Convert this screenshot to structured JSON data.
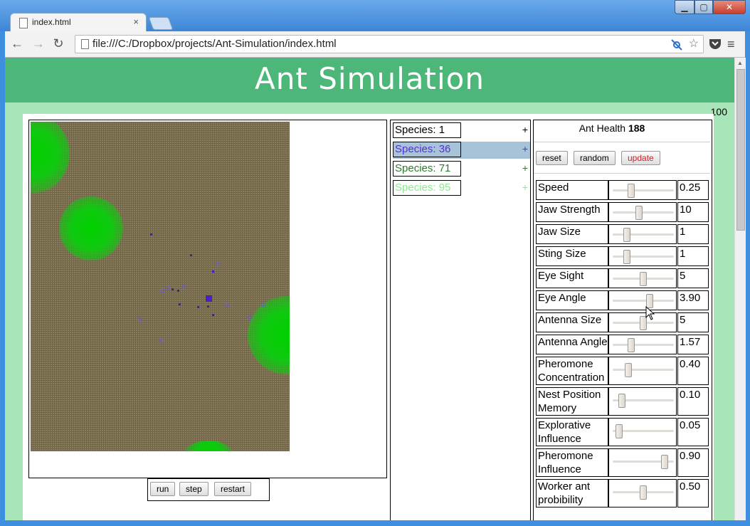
{
  "browser": {
    "tab_title": "index.html",
    "tab_close": "×",
    "url": "file:///C:/Dropbox/projects/Ant-Simulation/index.html",
    "back_icon": "←",
    "forward_icon": "→",
    "reload_icon": "↻",
    "min_icon": "▁",
    "max_icon": "▢",
    "close_icon": "✕",
    "star_icon": "☆",
    "menu_icon": "≡"
  },
  "page": {
    "title": "Ant Simulation",
    "counter": "100"
  },
  "sim_controls": {
    "run": "run",
    "step": "step",
    "restart": "restart"
  },
  "species": [
    {
      "label": "Species: 1",
      "color": "#000000",
      "plus": "+",
      "selected": false
    },
    {
      "label": "Species: 36",
      "color": "#5a2fd8",
      "plus": "+",
      "selected": true
    },
    {
      "label": "Species: 71",
      "color": "#2f7a2f",
      "plus": "+",
      "selected": false
    },
    {
      "label": "Species: 95",
      "color": "#8ee88e",
      "plus": "+",
      "selected": false
    }
  ],
  "params_panel": {
    "health_label": "Ant Health",
    "health_value": "188",
    "reset": "reset",
    "random": "random",
    "update": "update",
    "update_color": "#d0202a"
  },
  "params": [
    {
      "label": "Speed",
      "value": "0.25",
      "level": 0.28
    },
    {
      "label": "Jaw Strength",
      "value": "10",
      "level": 0.42
    },
    {
      "label": "Jaw Size",
      "value": "1",
      "level": 0.2
    },
    {
      "label": "Sting Size",
      "value": "1",
      "level": 0.2
    },
    {
      "label": "Eye Sight",
      "value": "5",
      "level": 0.5
    },
    {
      "label": "Eye Angle",
      "value": "3.90",
      "level": 0.62
    },
    {
      "label": "Antenna Size",
      "value": "5",
      "level": 0.5
    },
    {
      "label": "Antenna Angle",
      "value": "1.57",
      "level": 0.28
    },
    {
      "label": "Pheromone Concentration",
      "value": "0.40",
      "level": 0.23
    },
    {
      "label": "Nest Position Memory",
      "value": "0.10",
      "level": 0.1
    },
    {
      "label": "Explorative Influence",
      "value": "0.05",
      "level": 0.05
    },
    {
      "label": "Pheromone Influence",
      "value": "0.90",
      "level": 0.9
    },
    {
      "label": "Worker ant probibility",
      "value": "0.50",
      "level": 0.5
    }
  ]
}
